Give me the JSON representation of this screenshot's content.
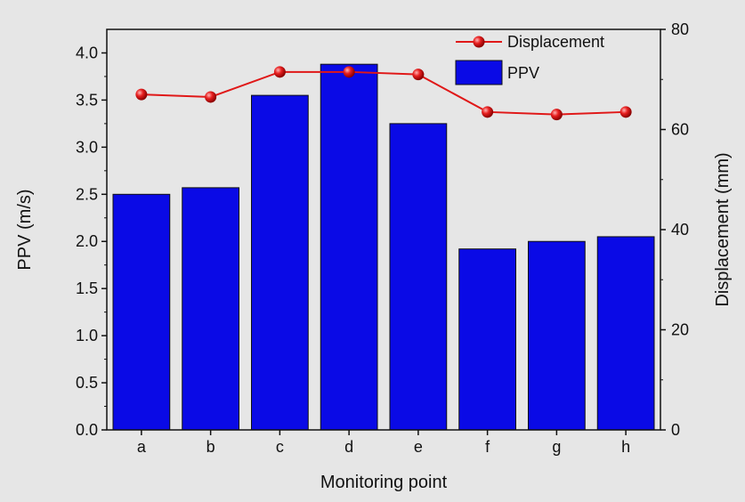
{
  "chart_data": {
    "type": "bar+line",
    "title": "",
    "xlabel": "Monitoring point",
    "ylabel_left": "PPV (m/s)",
    "ylabel_right": "Displacement (mm)",
    "categories": [
      "a",
      "b",
      "c",
      "d",
      "e",
      "f",
      "g",
      "h"
    ],
    "ylim_left": [
      0,
      4.25
    ],
    "ylim_right": [
      0,
      80
    ],
    "yticks_left": [
      "0.0",
      "0.5",
      "1.0",
      "1.5",
      "2.0",
      "2.5",
      "3.0",
      "3.5",
      "4.0"
    ],
    "yticks_right": [
      "0",
      "20",
      "40",
      "60",
      "80"
    ],
    "series": [
      {
        "name": "PPV",
        "type": "bar",
        "axis": "left",
        "color": "#0a0ae6",
        "values": [
          2.5,
          2.57,
          3.55,
          3.88,
          3.25,
          1.92,
          2.0,
          2.05
        ]
      },
      {
        "name": "Displacement",
        "type": "line",
        "axis": "right",
        "color": "#e01818",
        "values": [
          67.0,
          66.5,
          71.5,
          71.5,
          71.0,
          63.5,
          63.0,
          63.5
        ]
      }
    ],
    "legend_position": "top-right",
    "grid": false
  }
}
